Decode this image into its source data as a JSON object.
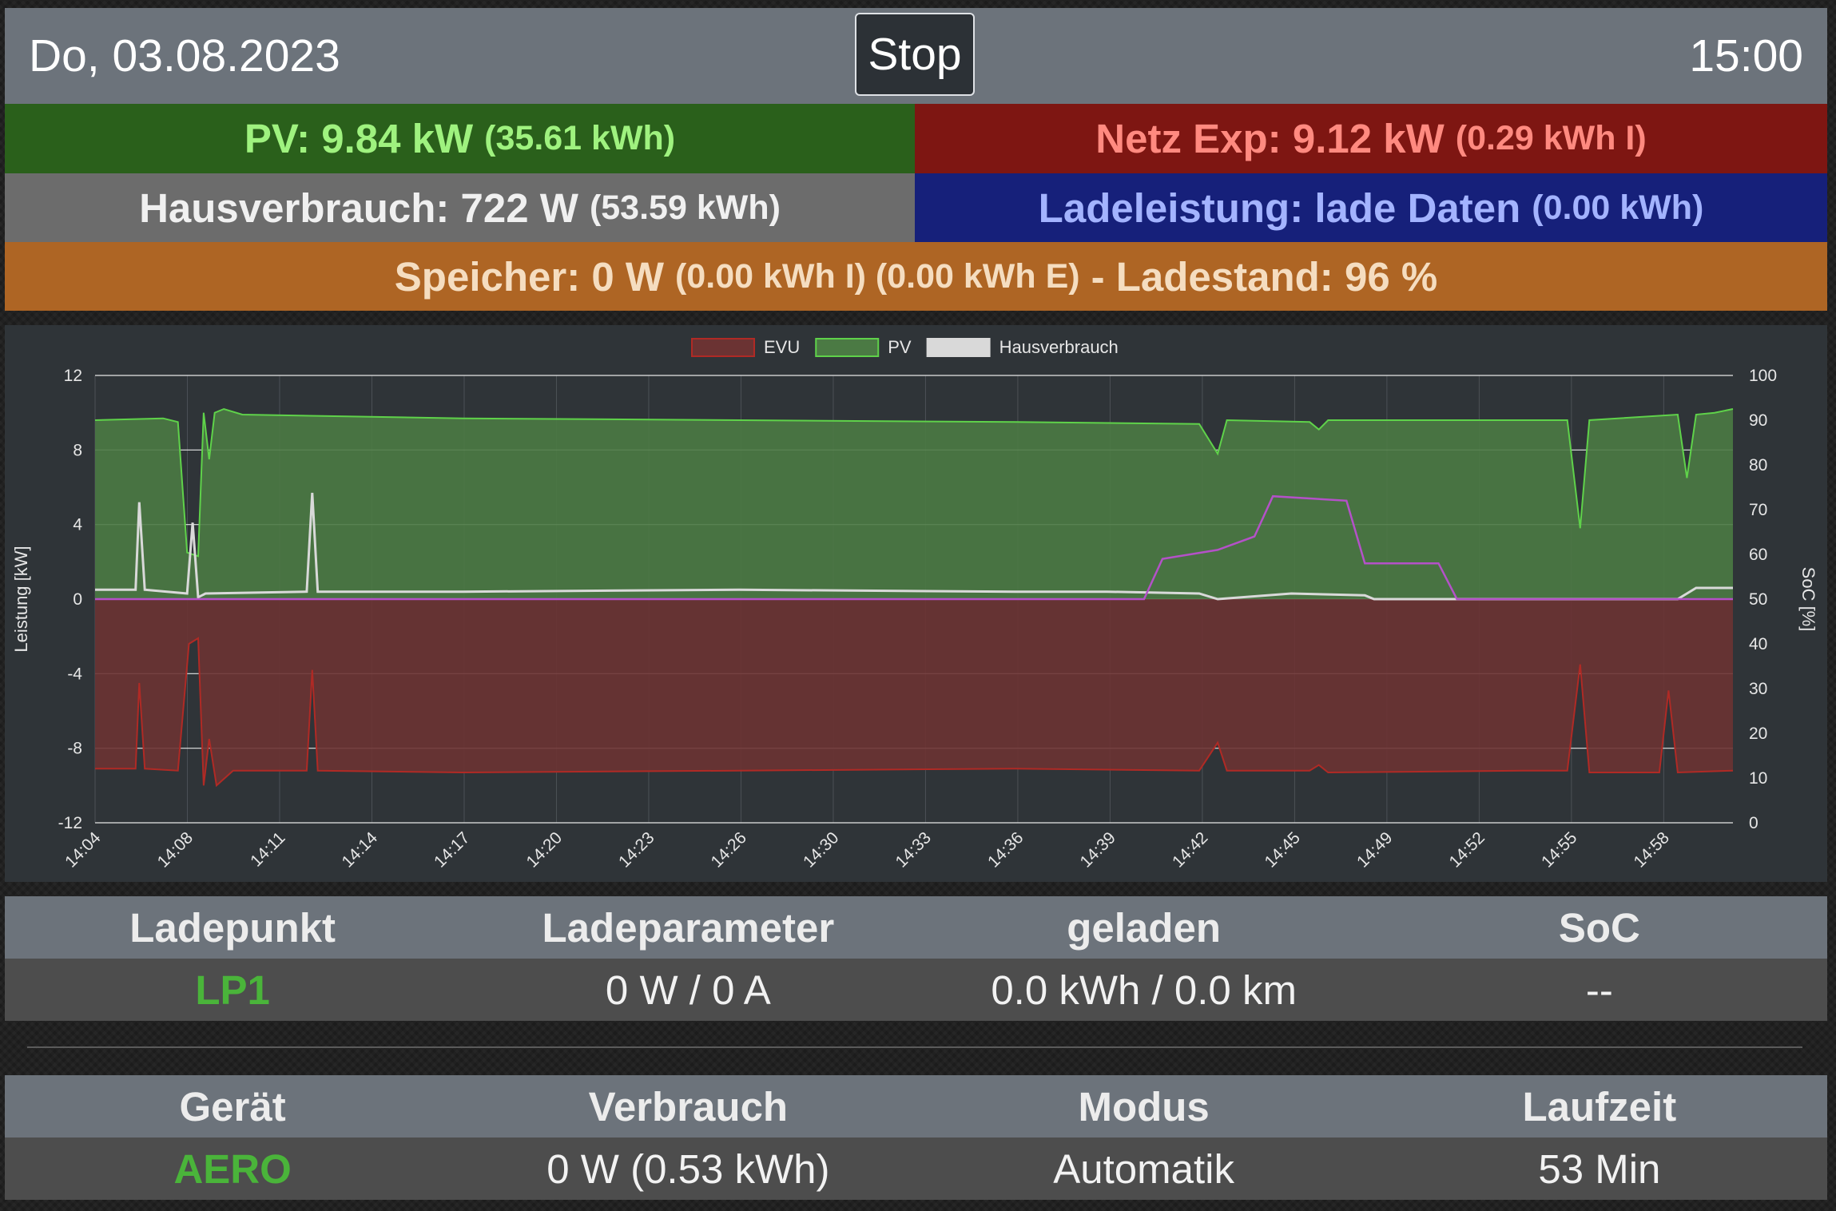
{
  "header": {
    "date": "Do, 03.08.2023",
    "stop_label": "Stop",
    "time": "15:00"
  },
  "status": {
    "pv_main": "PV: 9.84 kW",
    "pv_sub": "(35.61 kWh)",
    "netz_main": "Netz Exp: 9.12 kW",
    "netz_sub": "(0.29 kWh I)",
    "haus_main": "Hausverbrauch: 722 W",
    "haus_sub": "(53.59 kWh)",
    "lade_main": "Ladeleistung: lade Daten",
    "lade_sub": "(0.00 kWh)",
    "speicher_main": "Speicher: 0 W",
    "speicher_sub": "(0.00 kWh I) (0.00 kWh E)",
    "speicher_end": "- Ladestand: 96 %"
  },
  "colors": {
    "pv": "#2a601b",
    "netz": "#7e1612",
    "haus": "#6c6c6c",
    "lade": "#16207a",
    "speicher": "#ae6524"
  },
  "chart_data": {
    "type": "area",
    "legend_position": "top",
    "grid": true,
    "ylabel": "Leistung [kW]",
    "y2label": "SoC [%]",
    "ylim": [
      -12,
      12
    ],
    "y2lim": [
      0,
      100
    ],
    "yticks": [
      "12",
      "8",
      "4",
      "0",
      "-4",
      "-8",
      "-12"
    ],
    "y2ticks": [
      "100",
      "90",
      "80",
      "70",
      "60",
      "50",
      "40",
      "30",
      "20",
      "10",
      "0"
    ],
    "xticks": [
      "14:04",
      "14:08",
      "14:11",
      "14:14",
      "14:17",
      "14:20",
      "14:23",
      "14:26",
      "14:30",
      "14:33",
      "14:36",
      "14:39",
      "14:42",
      "14:45",
      "14:49",
      "14:52",
      "14:55",
      "14:58"
    ],
    "legend": [
      {
        "name": "EVU",
        "color": "#b02a25",
        "fill": "#6b3333"
      },
      {
        "name": "PV",
        "color": "#5fd24a",
        "fill": "#4b7a44"
      },
      {
        "name": "Hausverbrauch",
        "color": "#d9d9d9",
        "fill": "#d9d9d9"
      }
    ],
    "x_range_min": [
      0,
      89
    ],
    "series": [
      {
        "name": "PV",
        "points": [
          [
            0,
            9.6
          ],
          [
            3.7,
            9.7
          ],
          [
            4.5,
            9.5
          ],
          [
            5.0,
            2.5
          ],
          [
            5.6,
            2.3
          ],
          [
            5.9,
            10.0
          ],
          [
            6.2,
            7.5
          ],
          [
            6.5,
            10.0
          ],
          [
            7.0,
            10.2
          ],
          [
            8,
            9.9
          ],
          [
            20,
            9.7
          ],
          [
            35,
            9.6
          ],
          [
            50,
            9.5
          ],
          [
            60,
            9.4
          ],
          [
            61,
            7.8
          ],
          [
            61.5,
            9.6
          ],
          [
            66,
            9.5
          ],
          [
            66.5,
            9.1
          ],
          [
            67,
            9.6
          ],
          [
            78,
            9.6
          ],
          [
            80,
            9.6
          ],
          [
            80.7,
            3.8
          ],
          [
            81.2,
            9.6
          ],
          [
            86,
            9.9
          ],
          [
            86.5,
            6.5
          ],
          [
            87,
            9.9
          ],
          [
            88,
            10.0
          ],
          [
            89,
            10.2
          ]
        ]
      },
      {
        "name": "EVU",
        "points": [
          [
            0,
            -9.1
          ],
          [
            2.2,
            -9.1
          ],
          [
            2.4,
            -4.5
          ],
          [
            2.7,
            -9.1
          ],
          [
            4.5,
            -9.2
          ],
          [
            5.1,
            -2.4
          ],
          [
            5.6,
            -2.1
          ],
          [
            5.9,
            -10.0
          ],
          [
            6.2,
            -7.5
          ],
          [
            6.6,
            -10.0
          ],
          [
            7.5,
            -9.2
          ],
          [
            11.5,
            -9.2
          ],
          [
            11.8,
            -3.8
          ],
          [
            12.1,
            -9.2
          ],
          [
            20,
            -9.3
          ],
          [
            35,
            -9.2
          ],
          [
            50,
            -9.1
          ],
          [
            60,
            -9.2
          ],
          [
            61,
            -7.7
          ],
          [
            61.5,
            -9.2
          ],
          [
            66,
            -9.2
          ],
          [
            66.5,
            -8.9
          ],
          [
            67,
            -9.3
          ],
          [
            78,
            -9.2
          ],
          [
            80,
            -9.2
          ],
          [
            80.7,
            -3.5
          ],
          [
            81.2,
            -9.3
          ],
          [
            85,
            -9.3
          ],
          [
            85.5,
            -4.9
          ],
          [
            86,
            -9.3
          ],
          [
            89,
            -9.2
          ]
        ]
      },
      {
        "name": "Hausverbrauch",
        "points": [
          [
            0,
            0.5
          ],
          [
            2.2,
            0.5
          ],
          [
            2.4,
            5.2
          ],
          [
            2.7,
            0.5
          ],
          [
            5.0,
            0.3
          ],
          [
            5.3,
            4.1
          ],
          [
            5.6,
            0.1
          ],
          [
            6.0,
            0.3
          ],
          [
            11.5,
            0.4
          ],
          [
            11.8,
            5.7
          ],
          [
            12.1,
            0.4
          ],
          [
            20,
            0.4
          ],
          [
            35,
            0.5
          ],
          [
            50,
            0.4
          ],
          [
            55,
            0.4
          ],
          [
            60,
            0.3
          ],
          [
            61,
            0.0
          ],
          [
            65,
            0.3
          ],
          [
            69,
            0.2
          ],
          [
            69.5,
            0.0
          ],
          [
            86,
            0.0
          ],
          [
            87,
            0.6
          ],
          [
            89,
            0.6
          ]
        ]
      }
    ],
    "soc_series": {
      "name": "SoC",
      "points": [
        [
          0,
          50
        ],
        [
          57,
          50
        ],
        [
          58,
          59
        ],
        [
          61,
          61
        ],
        [
          63,
          64
        ],
        [
          64,
          73
        ],
        [
          68,
          72
        ],
        [
          69,
          58
        ],
        [
          73,
          58
        ],
        [
          74,
          50
        ],
        [
          89,
          50
        ]
      ]
    }
  },
  "ladepunkt_table": {
    "headers": [
      "Ladepunkt",
      "Ladeparameter",
      "geladen",
      "SoC"
    ],
    "row": [
      "LP1",
      "0 W / 0 A",
      "0.0 kWh / 0.0 km",
      "--"
    ]
  },
  "geraet_table": {
    "headers": [
      "Gerät",
      "Verbrauch",
      "Modus",
      "Laufzeit"
    ],
    "row": [
      "AERO",
      "0 W (0.53 kWh)",
      "Automatik",
      "53 Min"
    ]
  }
}
